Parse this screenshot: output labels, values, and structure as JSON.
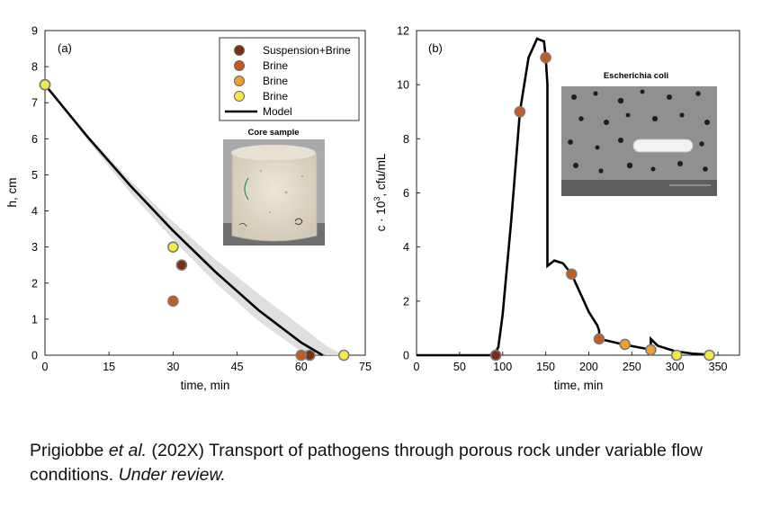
{
  "chart_data": [
    {
      "type": "scatter",
      "panel_label": "(a)",
      "xlabel": "time, min",
      "ylabel": "h, cm",
      "xlim": [
        0,
        75
      ],
      "ylim": [
        0,
        9
      ],
      "xticks": [
        "0",
        "15",
        "30",
        "45",
        "60",
        "75"
      ],
      "yticks": [
        "0",
        "1",
        "2",
        "3",
        "4",
        "5",
        "6",
        "7",
        "8",
        "9"
      ],
      "grid": false,
      "legend_position": "top-right",
      "legend": [
        {
          "label": "Suspension+Brine",
          "color": "#7a2f12"
        },
        {
          "label": "Brine",
          "color": "#c85a1c"
        },
        {
          "label": "Brine",
          "color": "#f0a030"
        },
        {
          "label": "Brine",
          "color": "#f5e84a"
        },
        {
          "label": "Model",
          "color": "#000000"
        }
      ],
      "series": [
        {
          "name": "Suspension+Brine",
          "color": "#7a2f12",
          "x": [
            0,
            32,
            62
          ],
          "y": [
            7.5,
            2.5,
            0
          ]
        },
        {
          "name": "Brine",
          "color": "#c85a1c",
          "x": [
            0,
            30,
            60
          ],
          "y": [
            7.5,
            1.5,
            0
          ]
        },
        {
          "name": "Brine",
          "color": "#f0a030",
          "x": [
            0
          ],
          "y": [
            7.5
          ]
        },
        {
          "name": "Brine",
          "color": "#f5e84a",
          "x": [
            0,
            30,
            70
          ],
          "y": [
            7.5,
            3.0,
            0
          ]
        }
      ],
      "model": {
        "name": "Model",
        "x": [
          0,
          10,
          20,
          30,
          40,
          50,
          60,
          65
        ],
        "y": [
          7.5,
          6.05,
          4.7,
          3.45,
          2.3,
          1.25,
          0.35,
          0
        ]
      },
      "uncertainty_band": {
        "x": [
          0,
          10,
          20,
          30,
          40,
          50,
          60,
          66,
          70
        ],
        "y_low": [
          7.5,
          5.95,
          4.5,
          3.2,
          2.0,
          0.95,
          0.1,
          0,
          0
        ],
        "y_high": [
          7.5,
          6.1,
          4.85,
          3.7,
          2.65,
          1.7,
          0.8,
          0.25,
          0
        ]
      },
      "inset": {
        "title": "Core sample"
      }
    },
    {
      "type": "line",
      "panel_label": "(b)",
      "xlabel": "time, min",
      "ylabel_main": "c · 10",
      "ylabel_sup": "3",
      "ylabel_tail": ", cfu/mL",
      "xlim": [
        0,
        375
      ],
      "ylim": [
        0,
        12
      ],
      "xticks": [
        "0",
        "50",
        "100",
        "150",
        "200",
        "250",
        "300",
        "350"
      ],
      "yticks": [
        "0",
        "2",
        "4",
        "6",
        "8",
        "10",
        "12"
      ],
      "grid": false,
      "model": {
        "x": [
          0,
          90,
          95,
          100,
          110,
          120,
          130,
          140,
          148,
          150,
          152,
          152,
          160,
          170,
          180,
          190,
          200,
          210,
          212,
          212,
          220,
          240,
          260,
          270,
          272,
          272,
          280,
          300,
          320,
          340
        ],
        "y": [
          0,
          0,
          0.3,
          1.5,
          5.0,
          9.0,
          11.0,
          11.7,
          11.6,
          11.0,
          10.0,
          3.3,
          3.5,
          3.4,
          3.0,
          2.3,
          1.6,
          1.1,
          0.9,
          0.6,
          0.55,
          0.4,
          0.28,
          0.22,
          0.2,
          0.6,
          0.35,
          0.15,
          0.06,
          0.02
        ]
      },
      "points": {
        "x": [
          92,
          120,
          150,
          180,
          212,
          242,
          272,
          302,
          340
        ],
        "y": [
          0,
          9.0,
          11.0,
          3.0,
          0.6,
          0.4,
          0.2,
          0,
          0
        ],
        "colors": [
          "#7a2f12",
          "#c85a1c",
          "#c85a1c",
          "#c85a1c",
          "#c85a1c",
          "#f0a030",
          "#f0a030",
          "#f5e84a",
          "#f5e84a"
        ]
      },
      "inset": {
        "title": "Escherichia coli"
      }
    }
  ],
  "caption": {
    "author": "Prigiobbe",
    "etal": "et al.",
    "rest": " (202X) Transport of pathogens through porous rock under variable flow conditions. ",
    "status": "Under review."
  }
}
